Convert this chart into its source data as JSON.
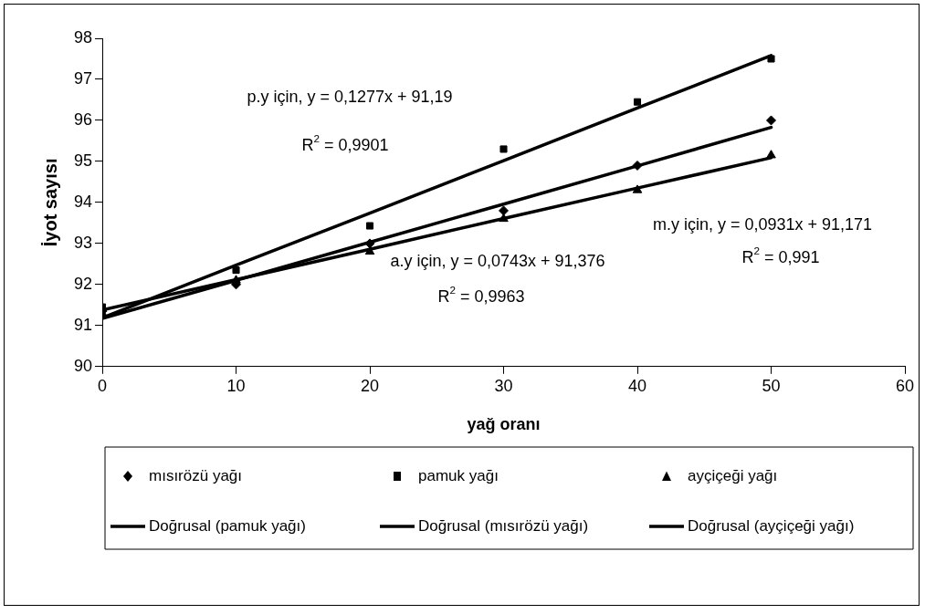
{
  "chart_data": {
    "type": "scatter",
    "xlabel": "yağ oranı",
    "ylabel": "İyot sayısı",
    "x": [
      0,
      10,
      20,
      30,
      40,
      50
    ],
    "xlim": [
      0,
      60
    ],
    "xticks": [
      0,
      10,
      20,
      30,
      40,
      50,
      60
    ],
    "ylim": [
      90,
      98
    ],
    "yticks": [
      90,
      91,
      92,
      93,
      94,
      95,
      96,
      97,
      98
    ],
    "grid": false,
    "legend": "bottom",
    "series": [
      {
        "name": "mısırözü yağı",
        "color": "#000000",
        "marker": "diamond",
        "values": [
          91.35,
          92.0,
          93.0,
          93.8,
          94.9,
          96.0
        ]
      },
      {
        "name": "pamuk yağı",
        "color": "#000000",
        "marker": "square",
        "values": [
          91.45,
          92.35,
          93.43,
          95.3,
          96.45,
          97.5
        ]
      },
      {
        "name": "ayçiçeği yağı",
        "color": "#000000",
        "marker": "triangle",
        "values": [
          91.3,
          92.1,
          92.8,
          93.6,
          94.3,
          95.15
        ]
      },
      {
        "name": "Doğrusal (pamuk yağı)",
        "type": "line",
        "line_style": "solid",
        "marker": "none",
        "color": "#000000",
        "values": [
          91.19,
          92.47,
          93.74,
          95.02,
          96.3,
          97.58
        ]
      },
      {
        "name": "Doğrusal (mısırözü yağı)",
        "type": "line",
        "line_style": "solid",
        "marker": "none",
        "color": "#000000",
        "values": [
          91.17,
          92.1,
          93.03,
          93.96,
          94.89,
          95.83
        ]
      },
      {
        "name": "Doğrusal (ayçiçeği yağı)",
        "type": "line",
        "line_style": "solid",
        "marker": "none",
        "color": "#000000",
        "values": [
          91.38,
          92.12,
          92.86,
          93.61,
          94.35,
          95.09
        ]
      }
    ],
    "annotations": [
      "p.y için, y = 0,1277x + 91,19",
      "R$^{2}$ = 0,9901",
      "a.y için, y = 0,0743x + 91,376",
      "R$^{2}$ = 0,9963",
      "m.y için, y = 0,0931x + 91,171",
      "R$^{2}$ = 0,991"
    ]
  }
}
